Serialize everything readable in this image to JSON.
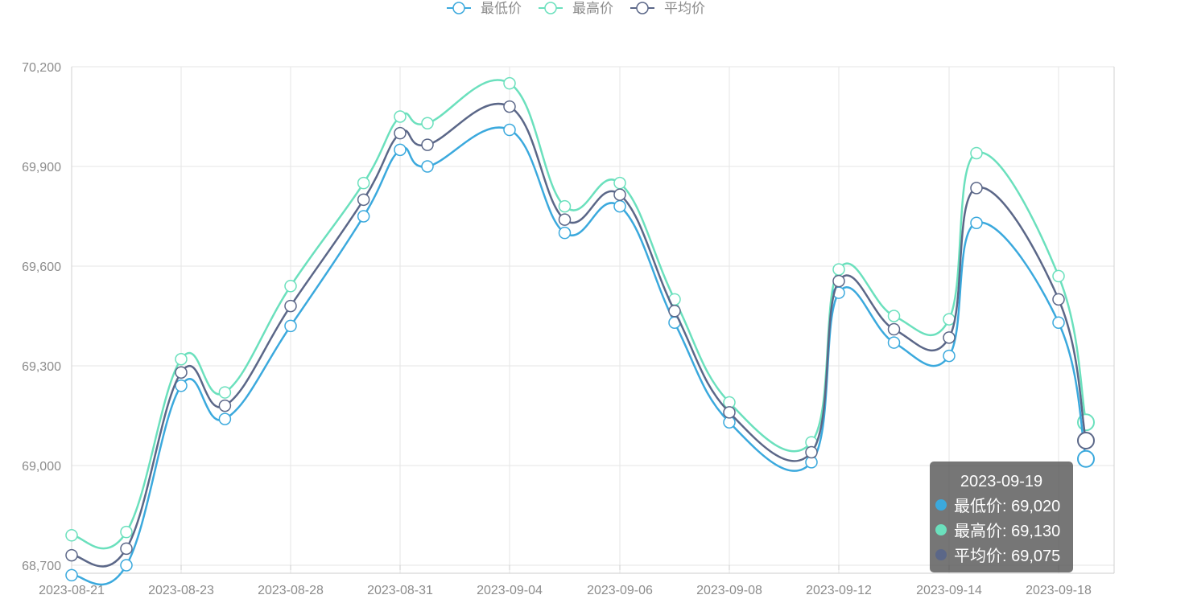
{
  "legend": {
    "items": [
      {
        "label": "最低价",
        "color": "#3ba9dd"
      },
      {
        "label": "最高价",
        "color": "#6be0bd"
      },
      {
        "label": "平均价",
        "color": "#5b6788"
      }
    ]
  },
  "tooltip": {
    "date": "2023-09-19",
    "rows": [
      {
        "text": "最低价: 69,020",
        "color": "#3ba9dd"
      },
      {
        "text": "最高价: 69,130",
        "color": "#6be0bd"
      },
      {
        "text": "平均价: 69,075",
        "color": "#5b6788"
      }
    ]
  },
  "chart_data": {
    "type": "line",
    "x": [
      "2023-08-21",
      "2023-08-22",
      "2023-08-23",
      "2023-08-25",
      "2023-08-28",
      "2023-08-30",
      "2023-08-31",
      "2023-09-01",
      "2023-09-04",
      "2023-09-05",
      "2023-09-06",
      "2023-09-07",
      "2023-09-08",
      "2023-09-11",
      "2023-09-12",
      "2023-09-13",
      "2023-09-14",
      "2023-09-15",
      "2023-09-18",
      "2023-09-19"
    ],
    "x_tick_labels": [
      "2023-08-21",
      "2023-08-23",
      "2023-08-28",
      "2023-08-31",
      "2023-09-04",
      "2023-09-06",
      "2023-09-08",
      "2023-09-12",
      "2023-09-14",
      "2023-09-18"
    ],
    "y_tick_labels": [
      "68,700",
      "69,000",
      "69,300",
      "69,600",
      "69,900",
      "70,200"
    ],
    "ylim": [
      68700,
      70200
    ],
    "grid": true,
    "legend_position": "top",
    "series": [
      {
        "name": "最低价",
        "color": "#3ba9dd",
        "values": [
          68670,
          68700,
          69240,
          69140,
          69420,
          69750,
          69950,
          69900,
          70010,
          69700,
          69780,
          69430,
          69130,
          69010,
          69520,
          69370,
          69330,
          69730,
          69430,
          69020
        ]
      },
      {
        "name": "最高价",
        "color": "#6be0bd",
        "values": [
          68790,
          68800,
          69320,
          69220,
          69540,
          69850,
          70050,
          70030,
          70150,
          69780,
          69850,
          69500,
          69190,
          69070,
          69590,
          69450,
          69440,
          69940,
          69570,
          69130
        ]
      },
      {
        "name": "平均价",
        "color": "#5b6788",
        "values": [
          68730,
          68750,
          69280,
          69180,
          69480,
          69800,
          70000,
          69965,
          70080,
          69740,
          69815,
          69465,
          69160,
          69040,
          69555,
          69410,
          69385,
          69835,
          69500,
          69075
        ]
      }
    ],
    "highlight_index": 19
  }
}
